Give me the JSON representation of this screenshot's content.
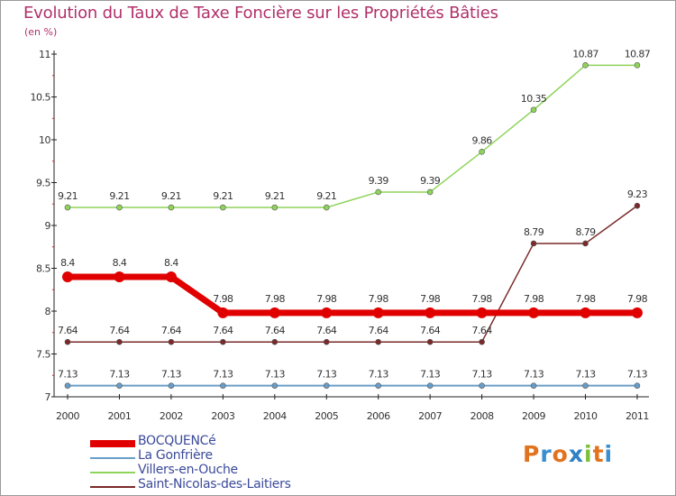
{
  "chart_data": {
    "type": "line",
    "title": "Evolution du Taux de Taxe Foncière sur les Propriétés Bâties",
    "subtitle": "(en %)",
    "xlabel": "",
    "ylabel": "",
    "ylim": [
      7,
      11
    ],
    "yticks": [
      "7",
      "7.5",
      "8",
      "8.5",
      "9",
      "9.5",
      "10",
      "10.5",
      "11"
    ],
    "x": [
      "2000",
      "2001",
      "2002",
      "2003",
      "2004",
      "2005",
      "2006",
      "2007",
      "2008",
      "2009",
      "2010",
      "2011"
    ],
    "series": [
      {
        "name": "BOCQUENCé",
        "color": "#e00000",
        "values": [
          8.4,
          8.4,
          8.4,
          7.98,
          7.98,
          7.98,
          7.98,
          7.98,
          7.98,
          7.98,
          7.98,
          7.98
        ],
        "labels": [
          "8.4",
          "8.4",
          "8.4",
          "7.98",
          "7.98",
          "7.98",
          "7.98",
          "7.98",
          "7.98",
          "7.98",
          "7.98",
          "7.98"
        ]
      },
      {
        "name": "La Gonfrière",
        "color": "#6a9ec8",
        "values": [
          7.13,
          7.13,
          7.13,
          7.13,
          7.13,
          7.13,
          7.13,
          7.13,
          7.13,
          7.13,
          7.13,
          7.13
        ],
        "labels": [
          "7.13",
          "7.13",
          "7.13",
          "7.13",
          "7.13",
          "7.13",
          "7.13",
          "7.13",
          "7.13",
          "7.13",
          "7.13",
          "7.13"
        ]
      },
      {
        "name": "Villers-en-Ouche",
        "color": "#8fd45a",
        "values": [
          9.21,
          9.21,
          9.21,
          9.21,
          9.21,
          9.21,
          9.39,
          9.39,
          9.86,
          10.35,
          10.87,
          10.87
        ],
        "labels": [
          "9.21",
          "9.21",
          "9.21",
          "9.21",
          "9.21",
          "9.21",
          "9.39",
          "9.39",
          "9.86",
          "10.35",
          "10.87",
          "10.87"
        ]
      },
      {
        "name": "Saint-Nicolas-des-Laitiers",
        "color": "#7a2a2a",
        "values": [
          7.64,
          7.64,
          7.64,
          7.64,
          7.64,
          7.64,
          7.64,
          7.64,
          7.64,
          8.79,
          8.79,
          9.23
        ],
        "labels": [
          "7.64",
          "7.64",
          "7.64",
          "7.64",
          "7.64",
          "7.64",
          "7.64",
          "7.64",
          "7.64",
          "8.79",
          "8.79",
          "9.23"
        ]
      }
    ],
    "legend": "bottom-left"
  },
  "logo": {
    "letters": [
      "P",
      "r",
      "o",
      "x",
      "i",
      "t",
      "i"
    ],
    "colors": [
      "#e2731e",
      "#3a8fd0",
      "#e2731e",
      "#2f7fc4",
      "#7cbf3a",
      "#e2731e",
      "#3a8fd0"
    ]
  }
}
